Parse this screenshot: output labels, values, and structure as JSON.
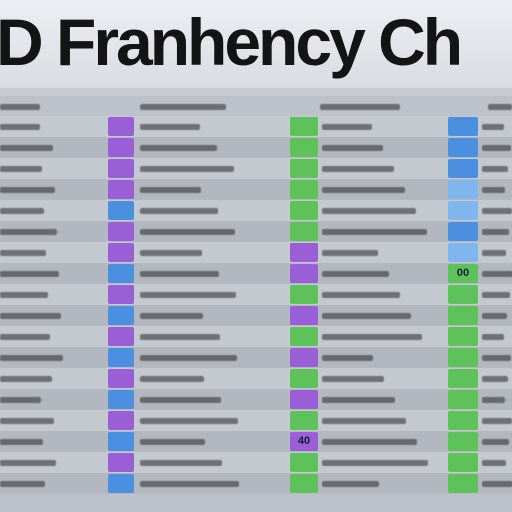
{
  "title": "D Franhency Ch",
  "colors": {
    "purple": "#9a5fd6",
    "blue": "#4b8fe0",
    "green": "#5ec25a",
    "light_blue": "#7fb6ee"
  },
  "rows": [
    {
      "swatch1": "purple",
      "swatch2": "green",
      "swatch3": "blue",
      "s2text": "",
      "s3text": ""
    },
    {
      "swatch1": "purple",
      "swatch2": "green",
      "swatch3": "blue",
      "s2text": "",
      "s3text": ""
    },
    {
      "swatch1": "purple",
      "swatch2": "green",
      "swatch3": "blue",
      "s2text": "",
      "s3text": ""
    },
    {
      "swatch1": "purple",
      "swatch2": "green",
      "swatch3": "light_blue",
      "s2text": "",
      "s3text": ""
    },
    {
      "swatch1": "blue",
      "swatch2": "green",
      "swatch3": "light_blue",
      "s2text": "",
      "s3text": ""
    },
    {
      "swatch1": "purple",
      "swatch2": "green",
      "swatch3": "blue",
      "s2text": "",
      "s3text": ""
    },
    {
      "swatch1": "purple",
      "swatch2": "purple",
      "swatch3": "light_blue",
      "s2text": "",
      "s3text": ""
    },
    {
      "swatch1": "blue",
      "swatch2": "purple",
      "swatch3": "green",
      "s2text": "",
      "s3text": "00"
    },
    {
      "swatch1": "purple",
      "swatch2": "green",
      "swatch3": "green",
      "s2text": "",
      "s3text": ""
    },
    {
      "swatch1": "blue",
      "swatch2": "purple",
      "swatch3": "green",
      "s2text": "",
      "s3text": ""
    },
    {
      "swatch1": "purple",
      "swatch2": "green",
      "swatch3": "green",
      "s2text": "",
      "s3text": ""
    },
    {
      "swatch1": "blue",
      "swatch2": "purple",
      "swatch3": "green",
      "s2text": "",
      "s3text": ""
    },
    {
      "swatch1": "purple",
      "swatch2": "green",
      "swatch3": "green",
      "s2text": "",
      "s3text": ""
    },
    {
      "swatch1": "blue",
      "swatch2": "purple",
      "swatch3": "green",
      "s2text": "",
      "s3text": ""
    },
    {
      "swatch1": "purple",
      "swatch2": "green",
      "swatch3": "green",
      "s2text": "",
      "s3text": ""
    },
    {
      "swatch1": "blue",
      "swatch2": "purple",
      "swatch3": "green",
      "s2text": "40",
      "s3text": ""
    },
    {
      "swatch1": "purple",
      "swatch2": "green",
      "swatch3": "green",
      "s2text": "",
      "s3text": ""
    },
    {
      "swatch1": "blue",
      "swatch2": "green",
      "swatch3": "green",
      "s2text": "",
      "s3text": ""
    }
  ]
}
